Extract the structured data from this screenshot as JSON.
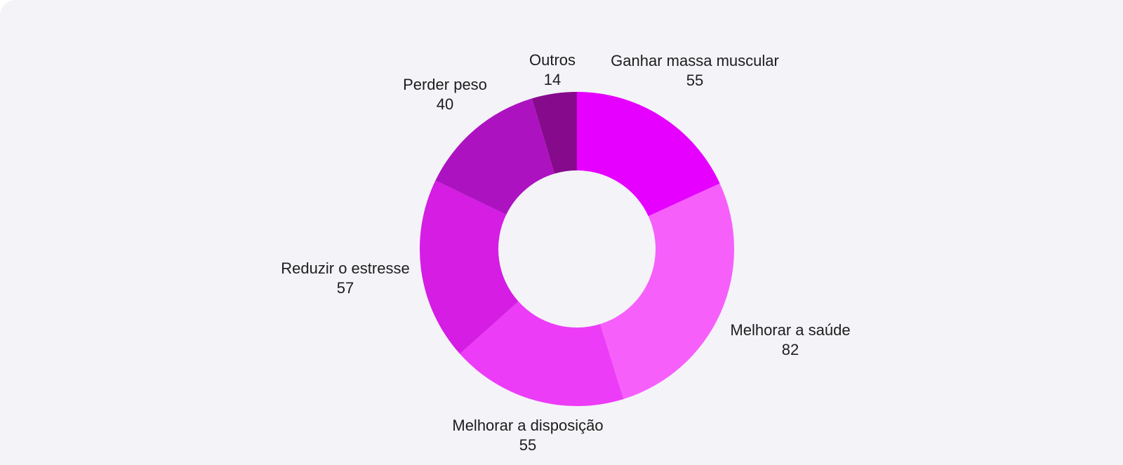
{
  "chart_data": {
    "type": "pie",
    "variant": "donut",
    "categories": [
      "Ganhar massa muscular",
      "Melhorar a saúde",
      "Melhorar a disposição",
      "Reduzir o estresse",
      "Perder peso",
      "Outros"
    ],
    "values": [
      55,
      82,
      55,
      57,
      40,
      14
    ],
    "colors": [
      "#e600ff",
      "#f75ffb",
      "#ec3cf7",
      "#d51de3",
      "#ad12c1",
      "#860a8c"
    ],
    "start_angle": "top",
    "direction": "clockwise",
    "legend": "none",
    "data_labels": "outside"
  }
}
